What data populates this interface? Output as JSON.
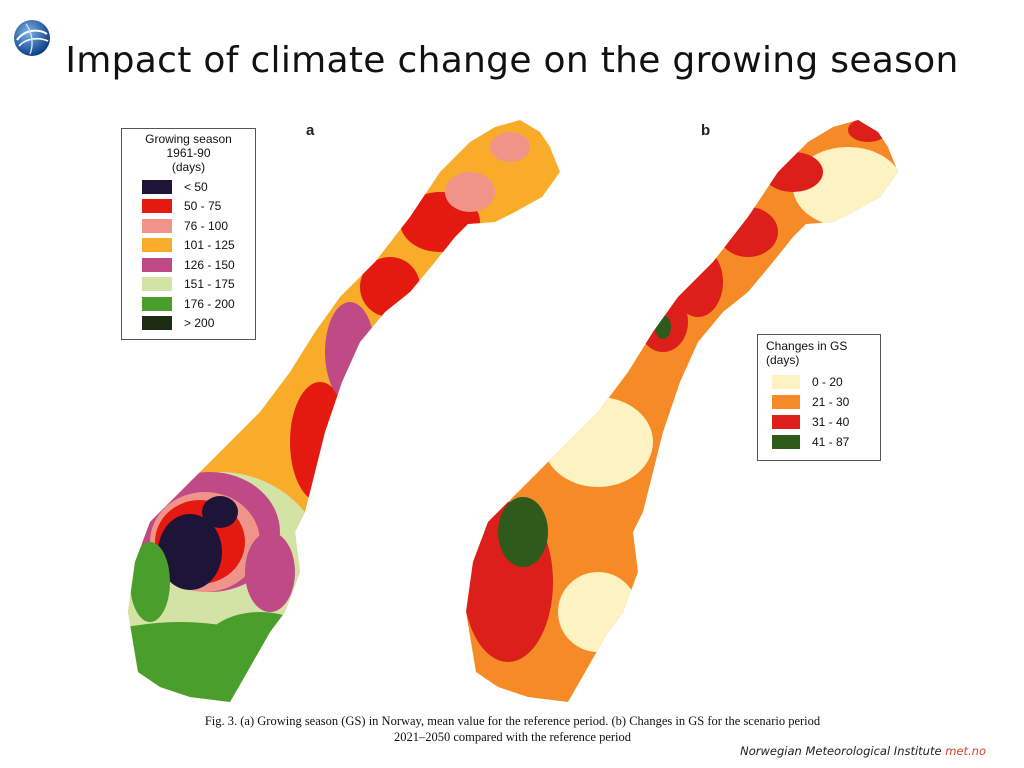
{
  "header": {
    "title": "Impact of climate change on the growing season",
    "logo_icon": "globe-logo-icon"
  },
  "panel_a": {
    "letter": "a",
    "legend": {
      "title_lines": [
        "Growing season",
        "1961-90",
        "(days)"
      ],
      "items": [
        {
          "label": "< 50",
          "color": "#1e1438"
        },
        {
          "label": "50 - 75",
          "color": "#e4190f"
        },
        {
          "label": "76 - 100",
          "color": "#f0948a"
        },
        {
          "label": "101 - 125",
          "color": "#f8ac2a"
        },
        {
          "label": "126 - 150",
          "color": "#c04a86"
        },
        {
          "label": "151 - 175",
          "color": "#d3e3a6"
        },
        {
          "label": "176 - 200",
          "color": "#4a9e2b"
        },
        {
          "label": "> 200",
          "color": "#1c2d14"
        }
      ]
    }
  },
  "panel_b": {
    "letter": "b",
    "legend": {
      "title_lines": [
        "Changes in GS",
        "(days)"
      ],
      "items": [
        {
          "label": "0 - 20",
          "color": "#fdf2c2"
        },
        {
          "label": "21 - 30",
          "color": "#f58a26"
        },
        {
          "label": "31 - 40",
          "color": "#dc1f1a"
        },
        {
          "label": "41 - 87",
          "color": "#2e5a1c"
        }
      ]
    }
  },
  "caption": {
    "line1": "Fig. 3. (a) Growing season (GS) in Norway, mean value for the reference period. (b) Changes in GS for the scenario period",
    "line2": "2021–2050 compared with the reference period"
  },
  "footer": {
    "institute": "Norwegian Meteorological Institute",
    "site": "met.no"
  }
}
